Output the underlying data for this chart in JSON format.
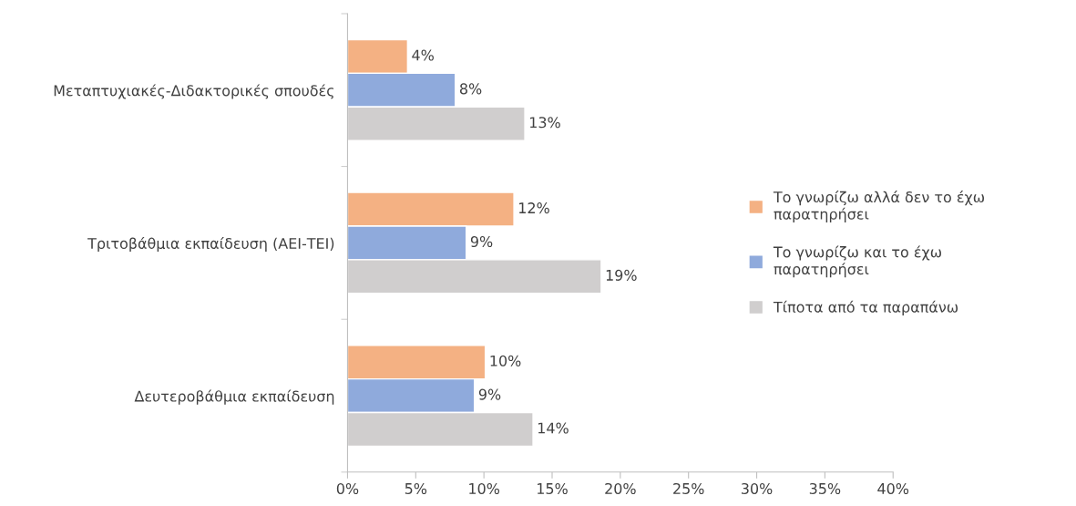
{
  "chart_data": {
    "type": "bar",
    "orientation": "horizontal",
    "categories": [
      "Μεταπτυχιακές-Διδακτορικές σπουδές",
      "Τριτοβάθμια εκπαίδευση (ΑΕΙ-ΤΕΙ)",
      "Δευτεροβάθμια εκπαίδευση"
    ],
    "series": [
      {
        "name": "Το γνωρίζω αλλά δεν το έχω παρατηρήσει",
        "color": "#f4b183",
        "values": [
          4.4,
          12.2,
          10.1
        ],
        "value_labels": [
          "4%",
          "12%",
          "10%"
        ]
      },
      {
        "name": "Το γνωρίζω και το έχω παρατηρήσει",
        "color": "#8faadc",
        "values": [
          7.9,
          8.7,
          9.3
        ],
        "value_labels": [
          "8%",
          "9%",
          "9%"
        ]
      },
      {
        "name": "Τίποτα από τα παραπάνω",
        "color": "#d0cece",
        "values": [
          13.0,
          18.6,
          13.6
        ],
        "value_labels": [
          "13%",
          "19%",
          "14%"
        ]
      }
    ],
    "xlim": [
      0,
      40
    ],
    "xticks": [
      {
        "value": 0,
        "label": "0%"
      },
      {
        "value": 5,
        "label": "5%"
      },
      {
        "value": 10,
        "label": "10%"
      },
      {
        "value": 15,
        "label": "15%"
      },
      {
        "value": 20,
        "label": "20%"
      },
      {
        "value": 25,
        "label": "25%"
      },
      {
        "value": 30,
        "label": "30%"
      },
      {
        "value": 35,
        "label": "35%"
      },
      {
        "value": 40,
        "label": "40%"
      }
    ],
    "grid": false,
    "legend": "right"
  }
}
